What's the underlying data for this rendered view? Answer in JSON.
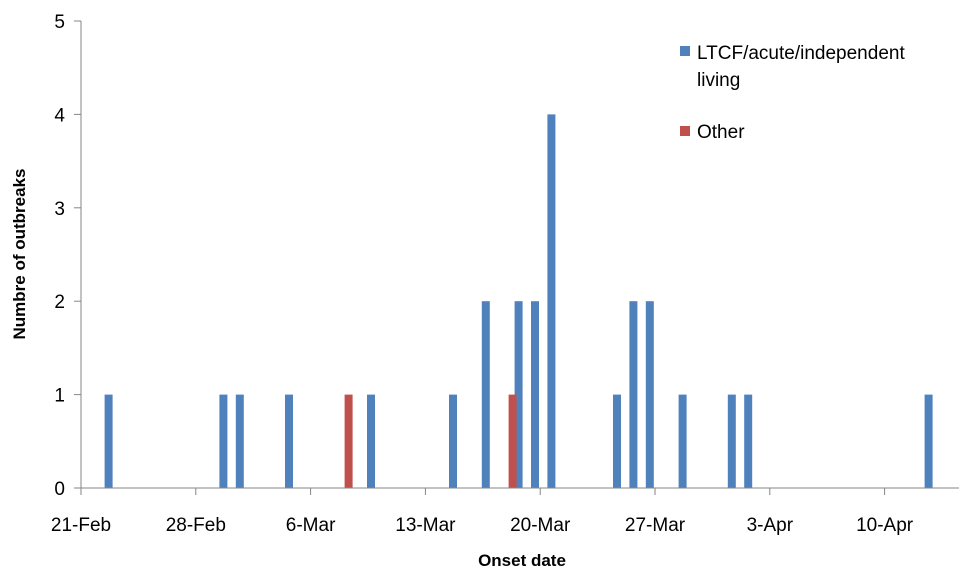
{
  "chart_data": {
    "type": "bar",
    "xlabel": "Onset date",
    "ylabel": "Numbre of outbreaks",
    "ylim": [
      0,
      5
    ],
    "yticks": [
      "0",
      "1",
      "2",
      "3",
      "4",
      "5"
    ],
    "x_tick_labels": [
      "21-Feb",
      "28-Feb",
      "6-Mar",
      "13-Mar",
      "20-Mar",
      "27-Mar",
      "3-Apr",
      "10-Apr"
    ],
    "legend_position": "top-right",
    "grid": false,
    "series": [
      {
        "name": "LTCF/acute/independent living",
        "color": "#4F81BD",
        "points": [
          {
            "x": "23-Feb",
            "y": 1
          },
          {
            "x": "1-Mar",
            "y": 1
          },
          {
            "x": "2-Mar",
            "y": 1
          },
          {
            "x": "5-Mar",
            "y": 1
          },
          {
            "x": "10-Mar",
            "y": 1
          },
          {
            "x": "15-Mar",
            "y": 1
          },
          {
            "x": "17-Mar",
            "y": 2
          },
          {
            "x": "19-Mar",
            "y": 2
          },
          {
            "x": "20-Mar",
            "y": 2
          },
          {
            "x": "21-Mar",
            "y": 4
          },
          {
            "x": "25-Mar",
            "y": 1
          },
          {
            "x": "26-Mar",
            "y": 2
          },
          {
            "x": "27-Mar",
            "y": 2
          },
          {
            "x": "29-Mar",
            "y": 1
          },
          {
            "x": "1-Apr",
            "y": 1
          },
          {
            "x": "2-Apr",
            "y": 1
          },
          {
            "x": "13-Apr",
            "y": 1
          }
        ]
      },
      {
        "name": "Other",
        "color": "#C0504D",
        "points": [
          {
            "x": "9-Mar",
            "y": 1
          },
          {
            "x": "19-Mar",
            "y": 1
          }
        ]
      }
    ]
  }
}
